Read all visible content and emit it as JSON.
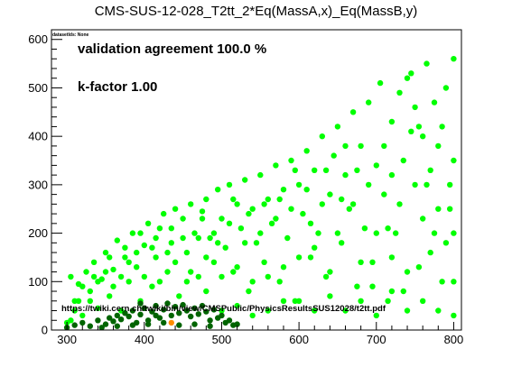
{
  "chart_data": {
    "type": "scatter",
    "title": "CMS-SUS-12-028_T2tt_2*Eq(MassA,x)_Eq(MassB,y)",
    "dataset_label": "datasetIds: None",
    "annotations": {
      "agreement": "validation agreement 100.0 %",
      "kfactor": "k-factor 1.00",
      "url": "https://twiki.cern.ch/twiki/bin/view/CMSPublic/PhysicsResultsSUS12028/t2tt.pdf"
    },
    "xlim": [
      280,
      810
    ],
    "ylim": [
      0,
      620
    ],
    "x_ticks": [
      300,
      400,
      500,
      600,
      700,
      800
    ],
    "y_ticks": [
      0,
      100,
      200,
      300,
      400,
      500,
      600
    ],
    "grid": false,
    "colors": {
      "allowed": "#00ff00",
      "excluded": "#006400",
      "special": "#ff8c00",
      "axis": "#000000"
    },
    "series": [
      {
        "key": "allowed",
        "points": [
          [
            300,
            15
          ],
          [
            305,
            110
          ],
          [
            310,
            60
          ],
          [
            315,
            95
          ],
          [
            320,
            30
          ],
          [
            325,
            120
          ],
          [
            330,
            80
          ],
          [
            335,
            140
          ],
          [
            340,
            45
          ],
          [
            345,
            105
          ],
          [
            350,
            160
          ],
          [
            355,
            70
          ],
          [
            360,
            125
          ],
          [
            365,
            185
          ],
          [
            370,
            40
          ],
          [
            375,
            150
          ],
          [
            380,
            100
          ],
          [
            385,
            200
          ],
          [
            390,
            130
          ],
          [
            395,
            60
          ],
          [
            400,
            175
          ],
          [
            405,
            220
          ],
          [
            410,
            90
          ],
          [
            415,
            150
          ],
          [
            420,
            210
          ],
          [
            425,
            240
          ],
          [
            430,
            120
          ],
          [
            435,
            180
          ],
          [
            440,
            250
          ],
          [
            445,
            70
          ],
          [
            450,
            230
          ],
          [
            455,
            160
          ],
          [
            460,
            260
          ],
          [
            465,
            200
          ],
          [
            470,
            110
          ],
          [
            475,
            245
          ],
          [
            480,
            270
          ],
          [
            485,
            190
          ],
          [
            490,
            140
          ],
          [
            495,
            290
          ],
          [
            500,
            230
          ],
          [
            505,
            170
          ],
          [
            510,
            300
          ],
          [
            515,
            120
          ],
          [
            520,
            260
          ],
          [
            525,
            210
          ],
          [
            530,
            310
          ],
          [
            535,
            80
          ],
          [
            540,
            250
          ],
          [
            545,
            180
          ],
          [
            550,
            320
          ],
          [
            555,
            140
          ],
          [
            560,
            270
          ],
          [
            565,
            220
          ],
          [
            570,
            340
          ],
          [
            575,
            100
          ],
          [
            580,
            290
          ],
          [
            585,
            190
          ],
          [
            590,
            350
          ],
          [
            595,
            60
          ],
          [
            600,
            300
          ],
          [
            605,
            240
          ],
          [
            610,
            370
          ],
          [
            615,
            150
          ],
          [
            620,
            330
          ],
          [
            625,
            200
          ],
          [
            630,
            400
          ],
          [
            635,
            110
          ],
          [
            640,
            280
          ],
          [
            645,
            360
          ],
          [
            650,
            420
          ],
          [
            655,
            180
          ],
          [
            660,
            320
          ],
          [
            665,
            250
          ],
          [
            670,
            450
          ],
          [
            675,
            90
          ],
          [
            680,
            380
          ],
          [
            685,
            210
          ],
          [
            690,
            470
          ],
          [
            695,
            140
          ],
          [
            700,
            340
          ],
          [
            705,
            510
          ],
          [
            710,
            280
          ],
          [
            715,
            60
          ],
          [
            720,
            430
          ],
          [
            725,
            200
          ],
          [
            730,
            490
          ],
          [
            735,
            350
          ],
          [
            740,
            120
          ],
          [
            745,
            530
          ],
          [
            750,
            300
          ],
          [
            755,
            420
          ],
          [
            760,
            230
          ],
          [
            765,
            550
          ],
          [
            770,
            160
          ],
          [
            775,
            470
          ],
          [
            780,
            380
          ],
          [
            785,
            100
          ],
          [
            790,
            500
          ],
          [
            795,
            300
          ],
          [
            800,
            560
          ],
          [
            800,
            350
          ],
          [
            800,
            200
          ],
          [
            800,
            100
          ],
          [
            790,
            180
          ],
          [
            780,
            250
          ],
          [
            770,
            330
          ],
          [
            760,
            400
          ],
          [
            750,
            460
          ],
          [
            740,
            520
          ],
          [
            730,
            260
          ],
          [
            720,
            150
          ],
          [
            710,
            380
          ],
          [
            700,
            200
          ],
          [
            690,
            300
          ],
          [
            680,
            140
          ],
          [
            670,
            260
          ],
          [
            660,
            380
          ],
          [
            650,
            200
          ],
          [
            640,
            120
          ],
          [
            630,
            260
          ],
          [
            620,
            170
          ],
          [
            610,
            290
          ],
          [
            600,
            150
          ],
          [
            590,
            250
          ],
          [
            580,
            130
          ],
          [
            570,
            230
          ],
          [
            560,
            110
          ],
          [
            550,
            200
          ],
          [
            540,
            100
          ],
          [
            530,
            180
          ],
          [
            520,
            130
          ],
          [
            510,
            220
          ],
          [
            500,
            110
          ],
          [
            490,
            200
          ],
          [
            480,
            150
          ],
          [
            470,
            190
          ],
          [
            460,
            120
          ],
          [
            450,
            190
          ],
          [
            440,
            140
          ],
          [
            430,
            160
          ],
          [
            420,
            100
          ],
          [
            410,
            170
          ],
          [
            400,
            110
          ],
          [
            390,
            160
          ],
          [
            380,
            140
          ],
          [
            370,
            110
          ],
          [
            360,
            90
          ],
          [
            350,
            120
          ],
          [
            340,
            100
          ],
          [
            330,
            60
          ],
          [
            320,
            90
          ],
          [
            310,
            40
          ],
          [
            305,
            20
          ],
          [
            720,
            320
          ],
          [
            745,
            410
          ],
          [
            765,
            300
          ],
          [
            785,
            420
          ],
          [
            795,
            250
          ],
          [
            775,
            200
          ],
          [
            755,
            130
          ],
          [
            735,
            80
          ],
          [
            715,
            210
          ],
          [
            695,
            90
          ],
          [
            675,
            330
          ],
          [
            655,
            270
          ],
          [
            635,
            330
          ],
          [
            615,
            220
          ],
          [
            595,
            330
          ],
          [
            575,
            270
          ],
          [
            555,
            260
          ],
          [
            535,
            240
          ],
          [
            515,
            270
          ],
          [
            495,
            180
          ],
          [
            475,
            230
          ],
          [
            455,
            100
          ],
          [
            435,
            210
          ],
          [
            415,
            190
          ],
          [
            395,
            200
          ],
          [
            375,
            170
          ],
          [
            355,
            150
          ],
          [
            335,
            110
          ],
          [
            315,
            60
          ],
          [
            600,
            60
          ],
          [
            620,
            40
          ],
          [
            640,
            70
          ],
          [
            660,
            40
          ],
          [
            680,
            60
          ],
          [
            700,
            30
          ],
          [
            720,
            80
          ],
          [
            740,
            40
          ],
          [
            760,
            60
          ],
          [
            780,
            40
          ],
          [
            800,
            30
          ],
          [
            560,
            40
          ],
          [
            580,
            60
          ],
          [
            540,
            30
          ],
          [
            520,
            50
          ],
          [
            500,
            40
          ],
          [
            480,
            80
          ]
        ]
      },
      {
        "key": "excluded",
        "points": [
          [
            300,
            5
          ],
          [
            310,
            10
          ],
          [
            320,
            15
          ],
          [
            330,
            8
          ],
          [
            340,
            20
          ],
          [
            350,
            12
          ],
          [
            355,
            25
          ],
          [
            360,
            18
          ],
          [
            365,
            30
          ],
          [
            370,
            22
          ],
          [
            375,
            35
          ],
          [
            380,
            28
          ],
          [
            385,
            40
          ],
          [
            390,
            15
          ],
          [
            395,
            32
          ],
          [
            400,
            45
          ],
          [
            405,
            20
          ],
          [
            410,
            38
          ],
          [
            415,
            50
          ],
          [
            420,
            25
          ],
          [
            425,
            42
          ],
          [
            430,
            55
          ],
          [
            435,
            30
          ],
          [
            440,
            48
          ],
          [
            445,
            35
          ],
          [
            450,
            52
          ],
          [
            455,
            40
          ],
          [
            460,
            28
          ],
          [
            465,
            45
          ],
          [
            470,
            33
          ],
          [
            475,
            50
          ],
          [
            480,
            38
          ],
          [
            485,
            20
          ],
          [
            490,
            42
          ],
          [
            495,
            25
          ],
          [
            500,
            30
          ],
          [
            505,
            15
          ],
          [
            510,
            20
          ],
          [
            515,
            10
          ],
          [
            520,
            12
          ],
          [
            345,
            5
          ],
          [
            365,
            8
          ],
          [
            385,
            10
          ],
          [
            405,
            12
          ],
          [
            425,
            15
          ],
          [
            445,
            10
          ],
          [
            465,
            12
          ],
          [
            485,
            8
          ],
          [
            395,
            55
          ],
          [
            415,
            30
          ]
        ]
      },
      {
        "key": "special",
        "points": [
          [
            435,
            15
          ]
        ]
      }
    ]
  }
}
